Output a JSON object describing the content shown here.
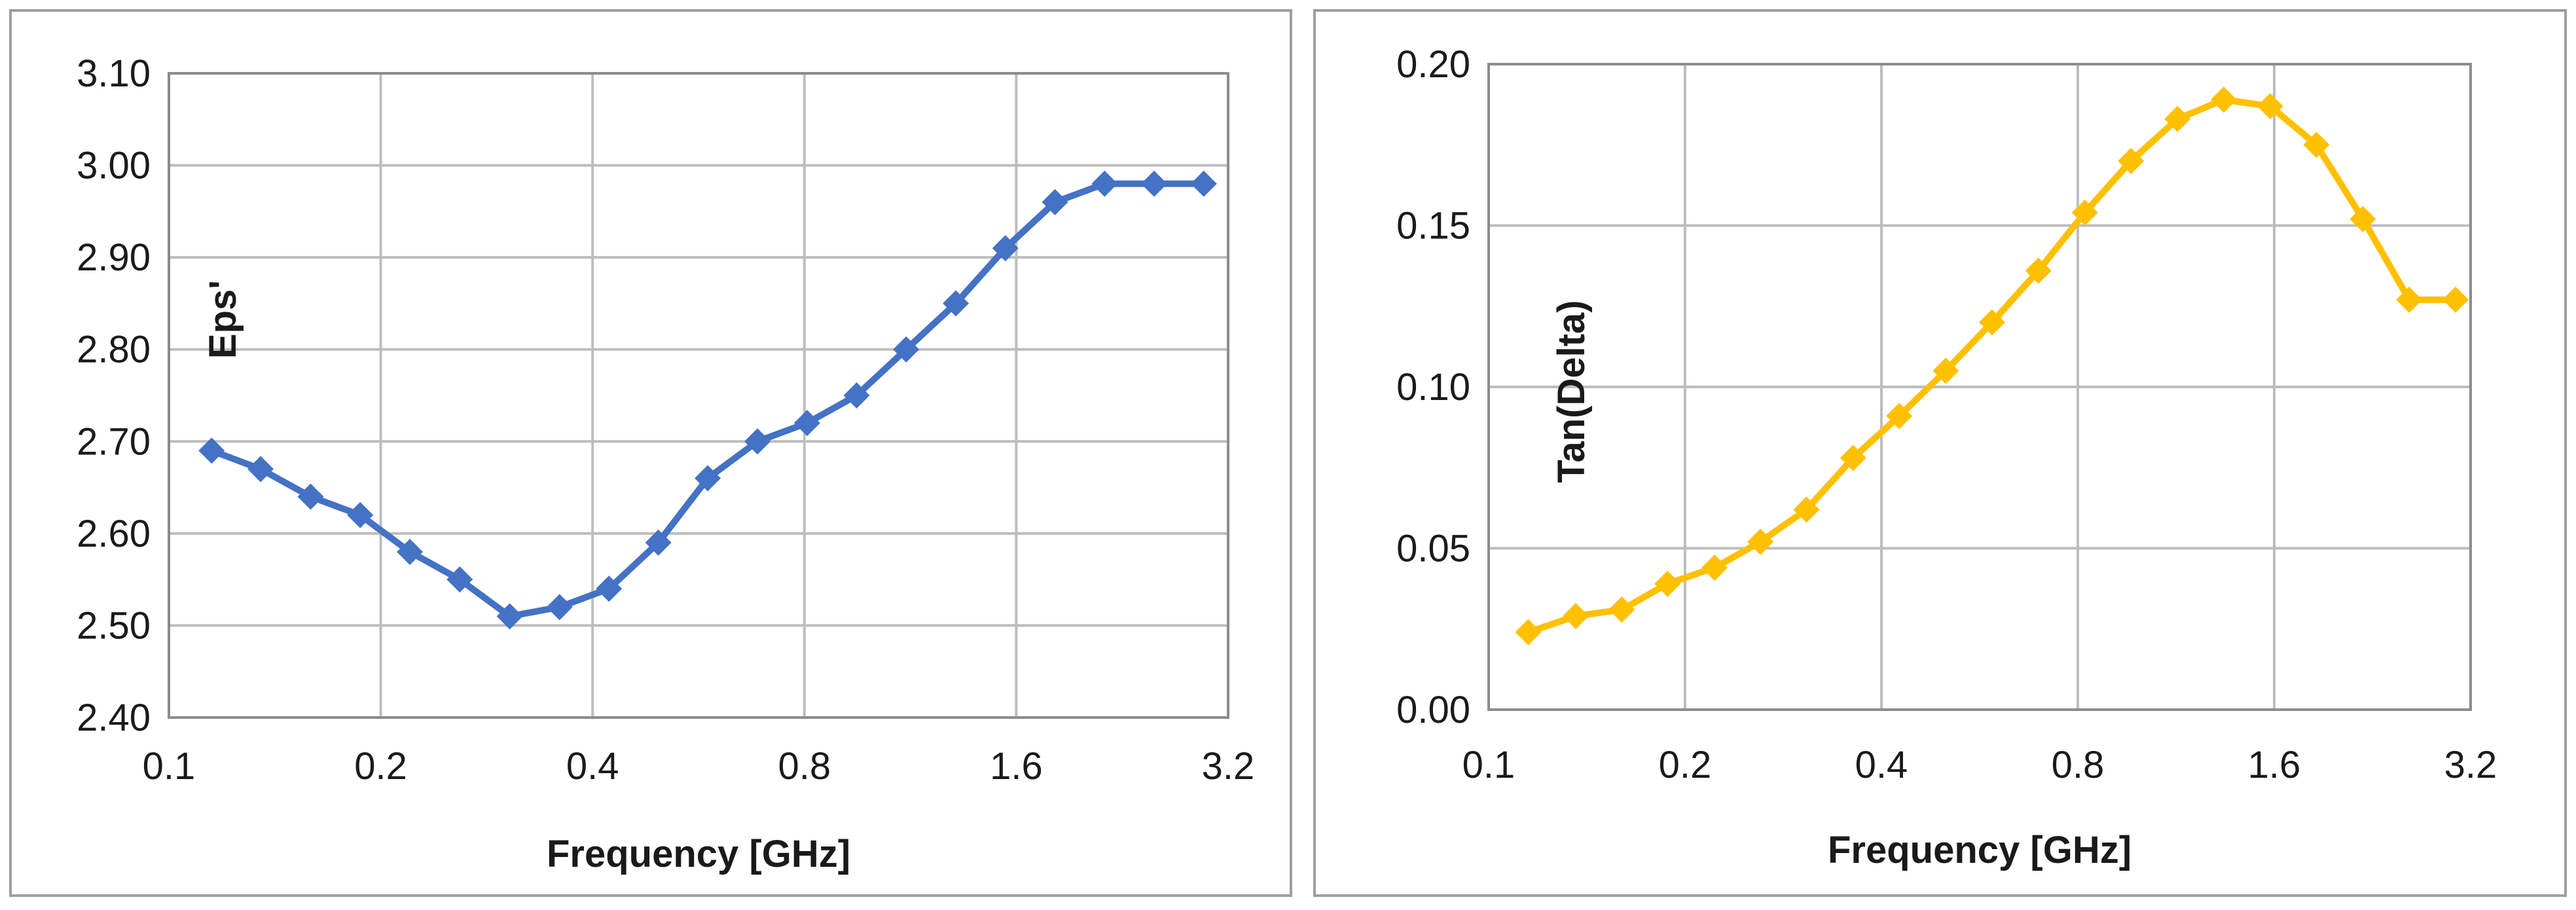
{
  "chart_data": [
    {
      "type": "line",
      "xlabel": "Frequency [GHz]",
      "ylabel": "Eps'",
      "x_scale": "log2",
      "xlim": [
        0.1,
        3.2
      ],
      "ylim": [
        2.4,
        3.1
      ],
      "x_ticks": [
        "0.1",
        "0.2",
        "0.4",
        "0.8",
        "1.6",
        "3.2"
      ],
      "y_ticks": [
        "2.40",
        "2.50",
        "2.60",
        "2.70",
        "2.80",
        "2.90",
        "3.00",
        "3.10"
      ],
      "grid": true,
      "marker": "diamond",
      "color": "#4472C4",
      "series": [
        {
          "x": [
            0.115,
            0.135,
            0.159,
            0.187,
            0.22,
            0.259,
            0.305,
            0.359,
            0.422,
            0.496,
            0.583,
            0.686,
            0.807,
            0.949,
            1.116,
            1.313,
            1.544,
            1.816,
            2.136,
            2.512,
            2.955
          ],
          "values": [
            2.69,
            2.67,
            2.64,
            2.62,
            2.58,
            2.55,
            2.51,
            2.52,
            2.54,
            2.59,
            2.66,
            2.7,
            2.72,
            2.75,
            2.8,
            2.85,
            2.91,
            2.96,
            2.98,
            2.98,
            2.98
          ]
        }
      ]
    },
    {
      "type": "line",
      "xlabel": "Frequency [GHz]",
      "ylabel": "Tan(Delta)",
      "x_scale": "log2",
      "xlim": [
        0.1,
        3.2
      ],
      "ylim": [
        0.0,
        0.2
      ],
      "x_ticks": [
        "0.1",
        "0.2",
        "0.4",
        "0.8",
        "1.6",
        "3.2"
      ],
      "y_ticks": [
        "0.00",
        "0.05",
        "0.10",
        "0.15",
        "0.20"
      ],
      "grid": true,
      "marker": "diamond",
      "color": "#FFC000",
      "series": [
        {
          "x": [
            0.115,
            0.136,
            0.16,
            0.188,
            0.222,
            0.261,
            0.307,
            0.362,
            0.426,
            0.502,
            0.591,
            0.696,
            0.82,
            0.965,
            1.137,
            1.339,
            1.577,
            1.857,
            2.188,
            2.576,
            3.034
          ],
          "values": [
            0.024,
            0.029,
            0.031,
            0.039,
            0.044,
            0.052,
            0.062,
            0.078,
            0.091,
            0.105,
            0.12,
            0.136,
            0.154,
            0.17,
            0.183,
            0.189,
            0.187,
            0.175,
            0.152,
            0.127,
            0.127
          ]
        }
      ]
    }
  ]
}
